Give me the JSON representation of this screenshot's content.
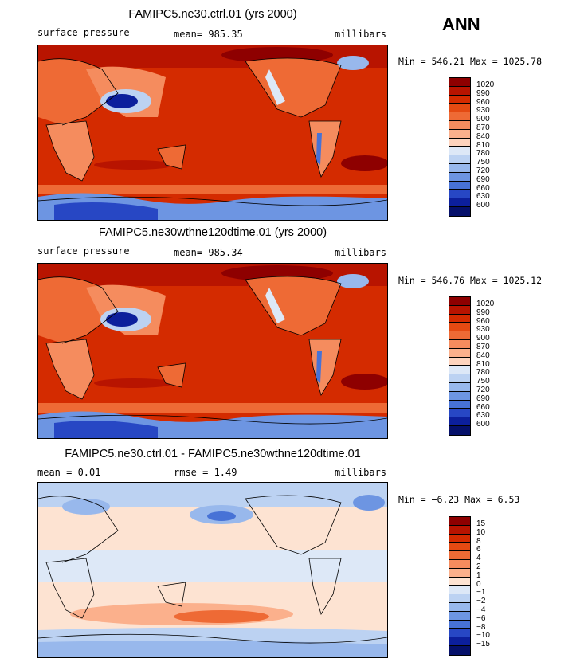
{
  "season_label": "ANN",
  "panels": [
    {
      "title": "FAMIPC5.ne30.ctrl.01 (yrs 2000)",
      "left_label": "surface pressure",
      "mean_text": "mean= 985.35",
      "units": "millibars",
      "minmax": "Min = 546.21 Max = 1025.78",
      "levels": [
        "1020",
        "990",
        "960",
        "930",
        "900",
        "870",
        "840",
        "810",
        "780",
        "750",
        "720",
        "690",
        "660",
        "630",
        "600"
      ],
      "colors": [
        "#8e0000",
        "#b81400",
        "#d42b00",
        "#e44a12",
        "#ee6a35",
        "#f58c5e",
        "#fbb08c",
        "#fdd3bd",
        "#dde8f7",
        "#bcd2f2",
        "#98b8ec",
        "#6d95e2",
        "#4772d6",
        "#2747c4",
        "#0c1f9c",
        "#05106a"
      ]
    },
    {
      "title": "FAMIPC5.ne30wthne120dtime.01 (yrs 2000)",
      "left_label": "surface pressure",
      "mean_text": "mean= 985.34",
      "units": "millibars",
      "minmax": "Min = 546.76 Max = 1025.12",
      "levels": [
        "1020",
        "990",
        "960",
        "930",
        "900",
        "870",
        "840",
        "810",
        "780",
        "750",
        "720",
        "690",
        "660",
        "630",
        "600"
      ],
      "colors": [
        "#8e0000",
        "#b81400",
        "#d42b00",
        "#e44a12",
        "#ee6a35",
        "#f58c5e",
        "#fbb08c",
        "#fdd3bd",
        "#dde8f7",
        "#bcd2f2",
        "#98b8ec",
        "#6d95e2",
        "#4772d6",
        "#2747c4",
        "#0c1f9c",
        "#05106a"
      ]
    },
    {
      "title": "FAMIPC5.ne30.ctrl.01 - FAMIPC5.ne30wthne120dtime.01",
      "left_label": "mean =    0.01",
      "mean_text": "rmse =    1.49",
      "units": "millibars",
      "minmax": "Min =  −6.23 Max =    6.53",
      "levels": [
        "15",
        "10",
        "8",
        "6",
        "4",
        "2",
        "1",
        "0",
        "−1",
        "−2",
        "−4",
        "−6",
        "−8",
        "−10",
        "−15"
      ],
      "colors": [
        "#8e0000",
        "#b81400",
        "#d42b00",
        "#e44a12",
        "#ee6a35",
        "#f58c5e",
        "#fbb08c",
        "#fde3d2",
        "#dde8f7",
        "#bcd2f2",
        "#98b8ec",
        "#6d95e2",
        "#4772d6",
        "#2747c4",
        "#0c1f9c",
        "#05106a"
      ]
    }
  ]
}
